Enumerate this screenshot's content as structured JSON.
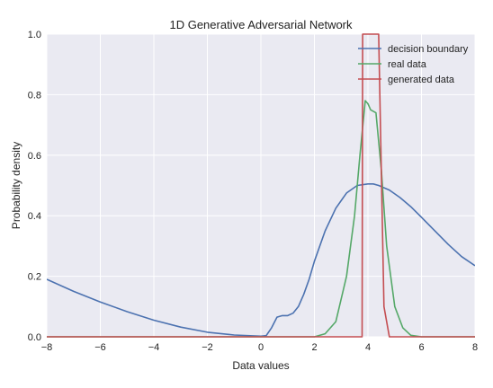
{
  "chart_data": {
    "type": "line",
    "title": "1D Generative Adversarial Network",
    "xlabel": "Data values",
    "ylabel": "Probability density",
    "xlim": [
      -8,
      8
    ],
    "ylim": [
      0,
      1.0
    ],
    "xticks": [
      -8,
      -6,
      -4,
      -2,
      0,
      2,
      4,
      6,
      8
    ],
    "xtick_labels": [
      "−8",
      "−6",
      "−4",
      "−2",
      "0",
      "2",
      "4",
      "6",
      "8"
    ],
    "yticks": [
      0,
      0.2,
      0.4,
      0.6,
      0.8,
      1.0
    ],
    "ytick_labels": [
      "0.0",
      "0.2",
      "0.4",
      "0.6",
      "0.8",
      "1.0"
    ],
    "grid": true,
    "legend_position": "top-right",
    "series": [
      {
        "name": "decision boundary",
        "color": "#4c72b0",
        "x": [
          -8,
          -7,
          -6,
          -5,
          -4,
          -3,
          -2,
          -1,
          0,
          0.2,
          0.4,
          0.6,
          0.8,
          1.0,
          1.2,
          1.4,
          1.6,
          1.8,
          2.0,
          2.4,
          2.8,
          3.2,
          3.6,
          4.0,
          4.2,
          4.4,
          4.8,
          5.2,
          5.6,
          6.0,
          6.5,
          7.0,
          7.5,
          8.0
        ],
        "values": [
          0.19,
          0.15,
          0.115,
          0.083,
          0.055,
          0.032,
          0.015,
          0.006,
          0.002,
          0.004,
          0.03,
          0.065,
          0.07,
          0.07,
          0.078,
          0.1,
          0.14,
          0.19,
          0.25,
          0.35,
          0.425,
          0.475,
          0.5,
          0.505,
          0.505,
          0.5,
          0.485,
          0.46,
          0.43,
          0.395,
          0.35,
          0.305,
          0.265,
          0.235
        ]
      },
      {
        "name": "real data",
        "color": "#55a868",
        "x": [
          -8,
          2.0,
          2.4,
          2.8,
          3.2,
          3.5,
          3.7,
          3.9,
          4.0,
          4.1,
          4.3,
          4.5,
          4.7,
          5.0,
          5.3,
          5.6,
          6.0,
          8.0
        ],
        "values": [
          0,
          0,
          0.01,
          0.05,
          0.2,
          0.4,
          0.6,
          0.78,
          0.77,
          0.75,
          0.74,
          0.55,
          0.3,
          0.1,
          0.03,
          0.005,
          0,
          0
        ]
      },
      {
        "name": "generated data",
        "color": "#c44e52",
        "x": [
          -8,
          3.78,
          3.8,
          3.82,
          4.38,
          4.4,
          4.6,
          4.8,
          8.0
        ],
        "values": [
          0,
          0,
          1.0,
          1.0,
          1.0,
          1.0,
          0.1,
          0,
          0
        ]
      }
    ]
  }
}
